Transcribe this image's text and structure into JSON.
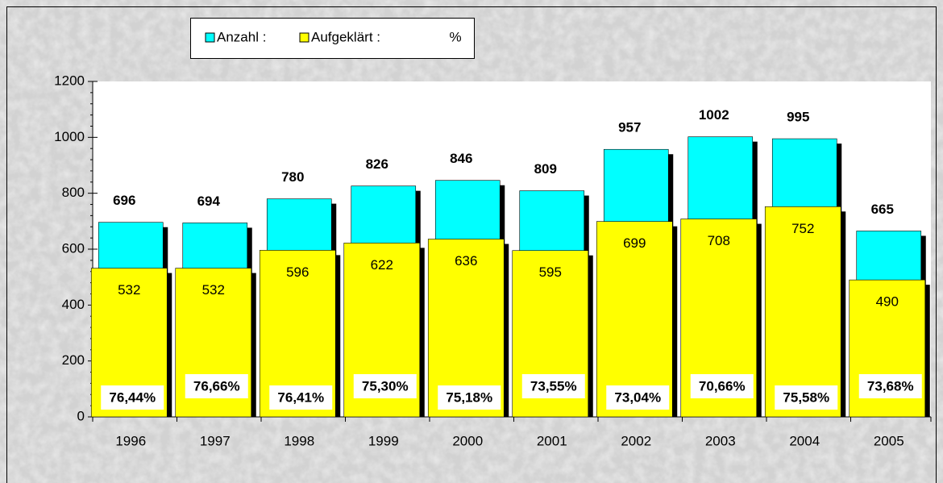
{
  "chart_data": {
    "type": "bar",
    "categories": [
      "1996",
      "1997",
      "1998",
      "1999",
      "2000",
      "2001",
      "2002",
      "2003",
      "2004",
      "2005"
    ],
    "series": [
      {
        "name": "Anzahl :",
        "color": "#00ffff",
        "values": [
          696,
          694,
          780,
          826,
          846,
          809,
          957,
          1002,
          995,
          665
        ]
      },
      {
        "name": "Aufgeklärt :",
        "color": "#ffff00",
        "values": [
          532,
          532,
          596,
          622,
          636,
          595,
          699,
          708,
          752,
          490
        ]
      },
      {
        "name": "%",
        "color": "#ffffff",
        "values": [
          76.44,
          76.66,
          76.41,
          75.3,
          75.18,
          73.55,
          73.04,
          70.66,
          75.58,
          73.68
        ],
        "value_labels": [
          "76,44%",
          "76,66%",
          "76,41%",
          "75,30%",
          "75,18%",
          "73,55%",
          "73,04%",
          "70,66%",
          "75,58%",
          "73,68%"
        ]
      }
    ],
    "ylim": [
      0,
      1200
    ],
    "yticks": [
      0,
      200,
      400,
      600,
      800,
      1000,
      1200
    ],
    "grid": false
  }
}
